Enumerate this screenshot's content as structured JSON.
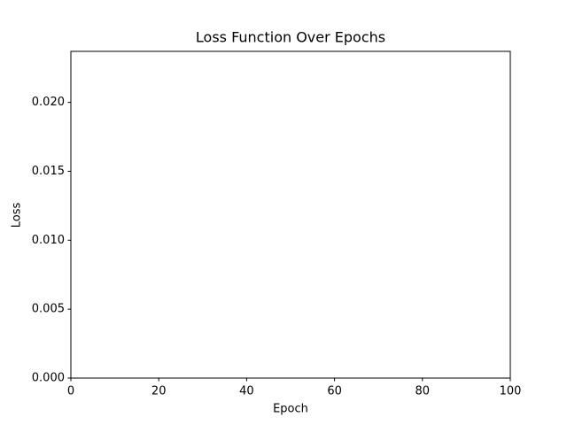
{
  "chart_data": {
    "type": "line",
    "title": "Loss Function Over Epochs",
    "x_label": "Epoch",
    "y_label": "Loss",
    "xlim": [
      0,
      100
    ],
    "xticks": [
      0,
      20,
      40,
      60,
      80,
      100
    ],
    "ylim": [
      0,
      0.0237
    ],
    "yticks": [
      {
        "value": 0,
        "label": "0.000"
      },
      {
        "value": 0.005,
        "label": "0.005"
      },
      {
        "value": 0.01,
        "label": "0.010"
      },
      {
        "value": 0.015,
        "label": "0.015"
      },
      {
        "value": 0.02,
        "label": "0.020"
      }
    ],
    "grid": false
  }
}
